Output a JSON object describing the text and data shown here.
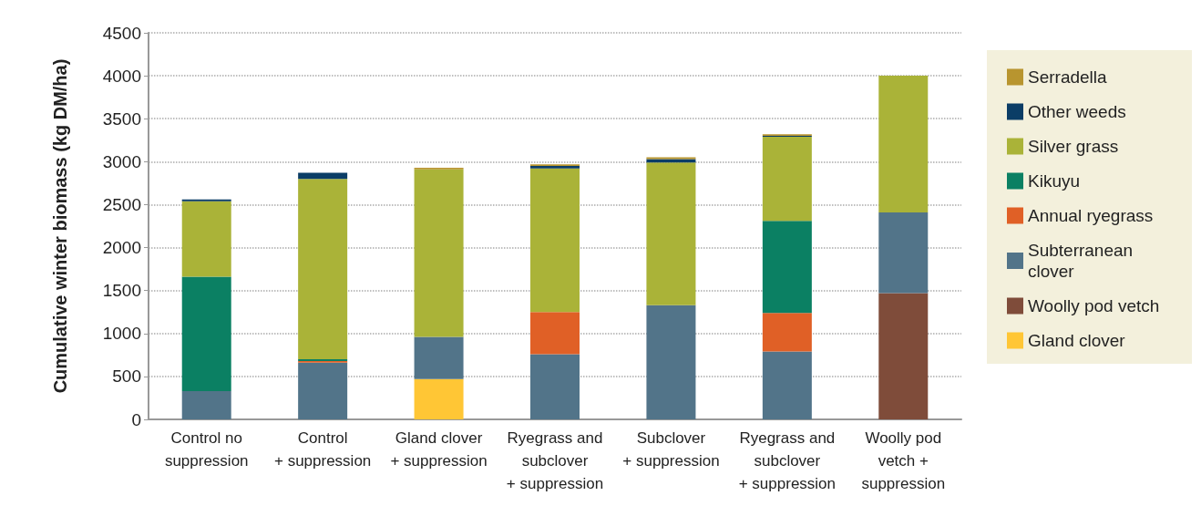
{
  "chart_data": {
    "type": "bar",
    "stacked": true,
    "ylabel": "Cumulative winter biomass (kg DM/ha)",
    "categories": [
      "Control no\nsuppression",
      "Control\n+ suppression",
      "Gland clover\n+ suppression",
      "Ryegrass and\nsubclover\n+ suppression",
      "Subclover\n+ suppression",
      "Ryegrass and\nsubclover\n+ suppression",
      "Woolly pod\nvetch +\nsuppression"
    ],
    "series": [
      {
        "name": "Gland clover",
        "color": "#ffc635",
        "values": [
          0,
          0,
          470,
          0,
          0,
          0,
          0
        ]
      },
      {
        "name": "Woolly pod vetch",
        "color": "#7f4c3a",
        "values": [
          0,
          0,
          0,
          0,
          0,
          0,
          1470
        ]
      },
      {
        "name": "Subterranean clover",
        "color": "#527489",
        "values": [
          330,
          660,
          490,
          760,
          1330,
          790,
          940
        ]
      },
      {
        "name": "Annual ryegrass",
        "color": "#e06026",
        "values": [
          0,
          20,
          0,
          490,
          0,
          450,
          0
        ]
      },
      {
        "name": "Kikuyu",
        "color": "#0b8063",
        "values": [
          1330,
          20,
          0,
          0,
          0,
          1070,
          0
        ]
      },
      {
        "name": "Silver grass",
        "color": "#aab338",
        "values": [
          880,
          2100,
          1950,
          1670,
          1660,
          980,
          1590
        ]
      },
      {
        "name": "Other weeds",
        "color": "#0b3d66",
        "values": [
          20,
          70,
          0,
          30,
          40,
          10,
          0
        ]
      },
      {
        "name": "Serradella",
        "color": "#b8952f",
        "values": [
          0,
          0,
          20,
          20,
          20,
          20,
          0
        ]
      }
    ],
    "ylim": [
      0,
      4500
    ],
    "yticks": [
      0,
      500,
      1000,
      1500,
      2000,
      2500,
      3000,
      3500,
      4000,
      4500
    ],
    "grid": "y",
    "legend": "right"
  }
}
